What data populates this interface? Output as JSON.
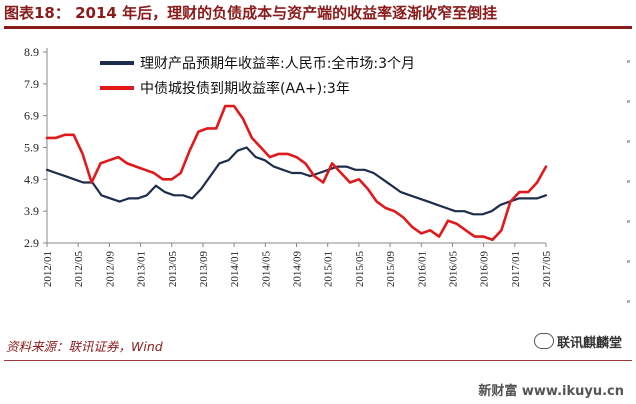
{
  "title": "图表18：  2014 年后，理财的负债成本与资产端的收益率逐渐收窄至倒挂",
  "source": "资料来源：联讯证券，Wind",
  "brand": "联讯麒麟堂",
  "watermark": "新财富 www.ikuyu.cn",
  "chart_data": {
    "type": "line",
    "ylim": [
      2.9,
      8.9
    ],
    "yticks": [
      "8.9",
      "7.9",
      "6.9",
      "5.9",
      "4.9",
      "3.9",
      "2.9"
    ],
    "xticks": [
      "2012/01",
      "2012/05",
      "2012/09",
      "2013/01",
      "2013/05",
      "2013/09",
      "2014/01",
      "2014/05",
      "2014/09",
      "2015/01",
      "2015/05",
      "2015/09",
      "2016/01",
      "2016/05",
      "2016/09",
      "2017/01",
      "2017/05"
    ],
    "legend_position": "top-left",
    "series": [
      {
        "name": "理财产品预期年收益率:人民币:全市场:3个月",
        "color": "#1f2d4d",
        "values": [
          5.2,
          5.1,
          5.0,
          4.9,
          4.8,
          4.8,
          4.4,
          4.3,
          4.2,
          4.3,
          4.3,
          4.4,
          4.7,
          4.5,
          4.4,
          4.4,
          4.3,
          4.6,
          5.0,
          5.4,
          5.5,
          5.8,
          5.9,
          5.6,
          5.5,
          5.3,
          5.2,
          5.1,
          5.1,
          5.0,
          5.1,
          5.2,
          5.3,
          5.3,
          5.2,
          5.2,
          5.1,
          4.9,
          4.7,
          4.5,
          4.4,
          4.3,
          4.2,
          4.1,
          4.0,
          3.9,
          3.9,
          3.8,
          3.8,
          3.9,
          4.1,
          4.2,
          4.3,
          4.3,
          4.3,
          4.4
        ]
      },
      {
        "name": "中债城投债到期收益率(AA+):3年",
        "color": "#e0191b",
        "values": [
          6.2,
          6.2,
          6.3,
          6.3,
          5.7,
          4.8,
          5.4,
          5.5,
          5.6,
          5.4,
          5.3,
          5.2,
          5.1,
          4.9,
          4.9,
          5.1,
          5.8,
          6.4,
          6.5,
          6.5,
          7.2,
          7.2,
          6.8,
          6.2,
          5.9,
          5.6,
          5.7,
          5.7,
          5.6,
          5.4,
          5.0,
          4.8,
          5.4,
          5.1,
          4.8,
          4.9,
          4.6,
          4.2,
          4.0,
          3.9,
          3.7,
          3.4,
          3.2,
          3.3,
          3.1,
          3.6,
          3.5,
          3.3,
          3.1,
          3.1,
          3.0,
          3.3,
          4.2,
          4.5,
          4.5,
          4.8,
          5.3
        ]
      }
    ]
  }
}
